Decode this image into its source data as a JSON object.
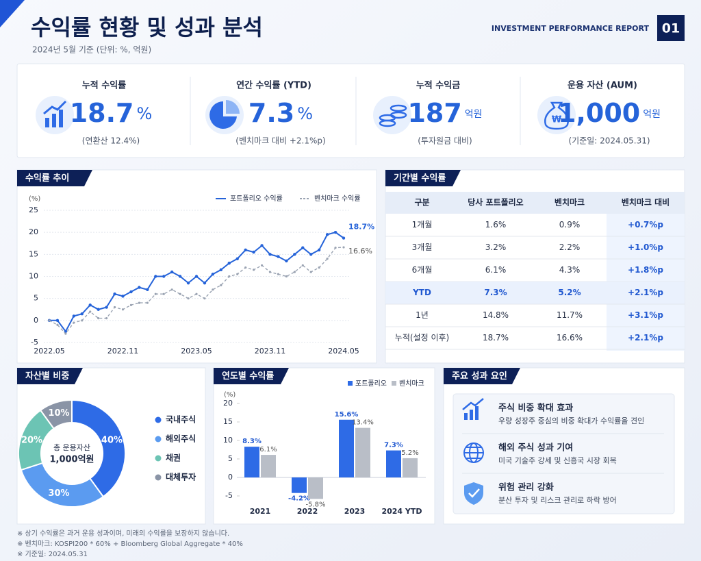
{
  "header": {
    "title": "수익률 현황 및 성과 분석",
    "subtitle": "2024년 5월 기준 (단위: %, 억원)",
    "report": "INVESTMENT PERFORMANCE REPORT",
    "page": "01"
  },
  "kpis": [
    {
      "label": "누적 수익률",
      "value": "18.7",
      "unit": "%",
      "note": "(연환산 12.4%)"
    },
    {
      "label": "연간 수익률 (YTD)",
      "value": "7.3",
      "unit": "%",
      "note": "(벤치마크 대비 +2.1%p)"
    },
    {
      "label": "누적 수익금",
      "value": "187",
      "unit": "억원",
      "note": "(투자원금 대비)"
    },
    {
      "label": "운용 자산 (AUM)",
      "value": "1,000",
      "unit": "억원",
      "note": "(기준일: 2024.05.31)"
    }
  ],
  "chart_data": [
    {
      "type": "line",
      "title": "수익률 추이",
      "y_unit": "(%)",
      "categories": [
        "2022.05",
        null,
        null,
        null,
        null,
        null,
        null,
        null,
        null,
        "2022.11",
        null,
        null,
        null,
        null,
        null,
        null,
        null,
        null,
        "2023.05",
        null,
        null,
        null,
        null,
        null,
        null,
        null,
        null,
        "2023.11",
        null,
        null,
        null,
        null,
        null,
        null,
        null,
        null,
        "2024.05"
      ],
      "series": [
        {
          "name": "포트폴리오 수익률",
          "color": "#2563d9",
          "label": "18.7%",
          "values": [
            0,
            0,
            -2.5,
            1,
            1.5,
            3.5,
            2.5,
            3,
            6,
            5.5,
            6.5,
            7.5,
            7,
            10,
            10,
            11,
            10,
            8.5,
            10,
            8.5,
            10.5,
            11.5,
            13,
            14,
            16,
            15.5,
            17,
            15,
            14.5,
            13.5,
            15,
            16.5,
            15,
            16,
            19.5,
            20,
            18.7
          ]
        },
        {
          "name": "벤치마크 수익률",
          "color": "#9aa3b2",
          "label": "16.6%",
          "values": [
            0,
            -1,
            -3,
            -0.5,
            0,
            2,
            0.5,
            0.5,
            3,
            2.5,
            3.5,
            4,
            4,
            6,
            6,
            7,
            6,
            5,
            6,
            5,
            7,
            8,
            10,
            10.5,
            12,
            11.5,
            12.5,
            11,
            10.5,
            10,
            11,
            12.5,
            11,
            12,
            14,
            16.5,
            16.6
          ]
        }
      ],
      "ylim": [
        -5,
        25
      ],
      "yticks": [
        -5,
        0,
        5,
        10,
        15,
        20,
        25
      ],
      "grid": true
    },
    {
      "type": "pie",
      "title": "자산별 비중",
      "center_label": "총 운용자산",
      "center_value": "1,000억원",
      "categories": [
        "국내주식",
        "해외주식",
        "채권",
        "대체투자"
      ],
      "values": [
        40,
        30,
        20,
        10
      ],
      "value_labels": [
        "40%",
        "30%",
        "20%",
        "10%"
      ],
      "colors": [
        "#2e6be6",
        "#5b9bf0",
        "#6cc4b4",
        "#8a94a6"
      ]
    },
    {
      "type": "bar",
      "title": "연도별 수익률",
      "y_unit": "(%)",
      "categories": [
        "2021",
        "2022",
        "2023",
        "2024 YTD"
      ],
      "series": [
        {
          "name": "포트폴리오",
          "color": "#2e6be6",
          "values": [
            8.3,
            -4.2,
            15.6,
            7.3
          ],
          "value_labels": [
            "8.3%",
            "-4.2%",
            "15.6%",
            "7.3%"
          ]
        },
        {
          "name": "벤치마크",
          "color": "#b9bec7",
          "values": [
            6.1,
            -5.8,
            13.4,
            5.2
          ],
          "value_labels": [
            "6.1%",
            "-5.8%",
            "13.4%",
            "5.2%"
          ]
        }
      ],
      "ylim": [
        -7,
        21
      ],
      "yticks": [
        -5,
        0,
        5,
        10,
        15,
        20
      ]
    }
  ],
  "table": {
    "title": "기간별 수익률",
    "headers": [
      "구분",
      "당사 포트폴리오",
      "벤치마크",
      "벤치마크 대비"
    ],
    "rows": [
      [
        "1개월",
        "1.6%",
        "0.9%",
        "+0.7%p"
      ],
      [
        "3개월",
        "3.2%",
        "2.2%",
        "+1.0%p"
      ],
      [
        "6개월",
        "6.1%",
        "4.3%",
        "+1.8%p"
      ],
      [
        "YTD",
        "7.3%",
        "5.2%",
        "+2.1%p"
      ],
      [
        "1년",
        "14.8%",
        "11.7%",
        "+3.1%p"
      ],
      [
        "누적(설정 이후)",
        "18.7%",
        "16.6%",
        "+2.1%p"
      ]
    ]
  },
  "factors": {
    "title": "주요 성과 요인",
    "items": [
      {
        "title": "주식 비중 확대 효과",
        "desc": "우량 성장주 중심의 비중 확대가 수익률을 견인"
      },
      {
        "title": "해외 주식 성과 기여",
        "desc": "미국 기술주 강세 및 신흥국 시장 회복"
      },
      {
        "title": "위험 관리 강화",
        "desc": "분산 투자 및 리스크 관리로 하락 방어"
      }
    ]
  },
  "notes": [
    "※ 상기 수익률은 과거 운용 성과이며, 미래의 수익률을 보장하지 않습니다.",
    "※ 벤치마크: KOSPI200 * 60% + Bloomberg Global Aggregate * 40%",
    "※ 기준일: 2024.05.31"
  ]
}
